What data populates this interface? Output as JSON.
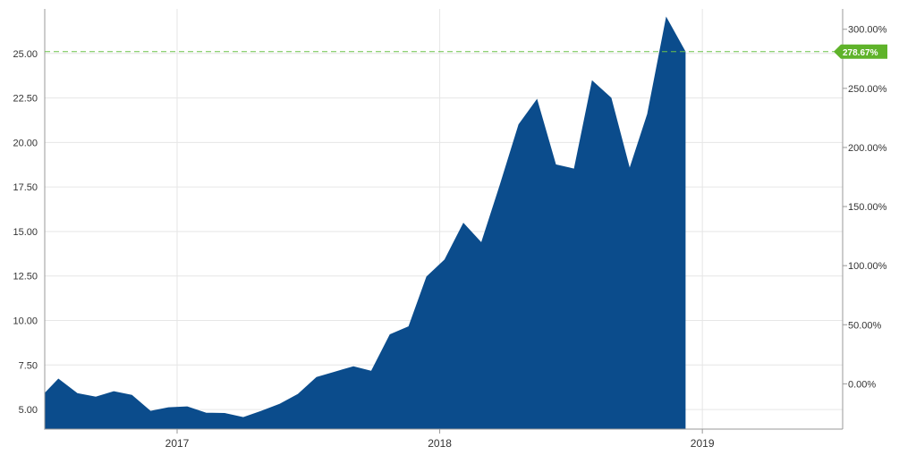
{
  "chart_data": {
    "type": "area",
    "series": [
      {
        "color": "#0b4c8c",
        "points": [
          [
            "2016-07-01",
            5.9
          ],
          [
            "2016-07-20",
            6.7
          ],
          [
            "2016-08-15",
            5.9
          ],
          [
            "2016-09-10",
            5.7
          ],
          [
            "2016-10-05",
            6.0
          ],
          [
            "2016-10-30",
            5.8
          ],
          [
            "2016-11-25",
            4.9
          ],
          [
            "2016-12-20",
            5.1
          ],
          [
            "2017-01-15",
            5.15
          ],
          [
            "2017-02-10",
            4.8
          ],
          [
            "2017-03-08",
            4.78
          ],
          [
            "2017-04-03",
            4.55
          ],
          [
            "2017-04-28",
            4.9
          ],
          [
            "2017-05-24",
            5.3
          ],
          [
            "2017-06-18",
            5.85
          ],
          [
            "2017-07-14",
            6.8
          ],
          [
            "2017-08-08",
            7.1
          ],
          [
            "2017-09-03",
            7.4
          ],
          [
            "2017-09-28",
            7.15
          ],
          [
            "2017-10-24",
            9.2
          ],
          [
            "2017-11-19",
            9.65
          ],
          [
            "2017-12-14",
            12.45
          ],
          [
            "2018-01-08",
            13.4
          ],
          [
            "2018-02-03",
            15.45
          ],
          [
            "2018-02-28",
            14.35
          ],
          [
            "2018-03-26",
            17.6
          ],
          [
            "2018-04-21",
            21.0
          ],
          [
            "2018-05-16",
            22.4
          ],
          [
            "2018-06-11",
            18.75
          ],
          [
            "2018-07-07",
            18.5
          ],
          [
            "2018-08-01",
            23.45
          ],
          [
            "2018-08-27",
            22.5
          ],
          [
            "2018-09-22",
            18.5
          ],
          [
            "2018-10-17",
            21.6
          ],
          [
            "2018-11-12",
            27.0
          ],
          [
            "2018-12-08",
            25.1
          ]
        ]
      }
    ],
    "x_ticks": [
      "2017",
      "2018",
      "2019"
    ],
    "xlim": [
      "2016-07-01",
      "2019-07-15"
    ],
    "y_left": {
      "ticks": [
        "5.00",
        "7.50",
        "10.00",
        "12.50",
        "15.00",
        "17.50",
        "20.00",
        "22.50",
        "25.00"
      ],
      "ylim": [
        3.9,
        27.5
      ]
    },
    "y_right": {
      "ticks": [
        "0.00%",
        "50.00%",
        "100.00%",
        "150.00%",
        "200.00%",
        "250.00%",
        "300.00%"
      ],
      "ylim": [
        -38.3,
        317.2
      ]
    },
    "last_value": {
      "value": 25.1,
      "label": "278.67%",
      "label_color": "#5fb32a",
      "line_color": "#6cc24a"
    },
    "grid": true
  }
}
